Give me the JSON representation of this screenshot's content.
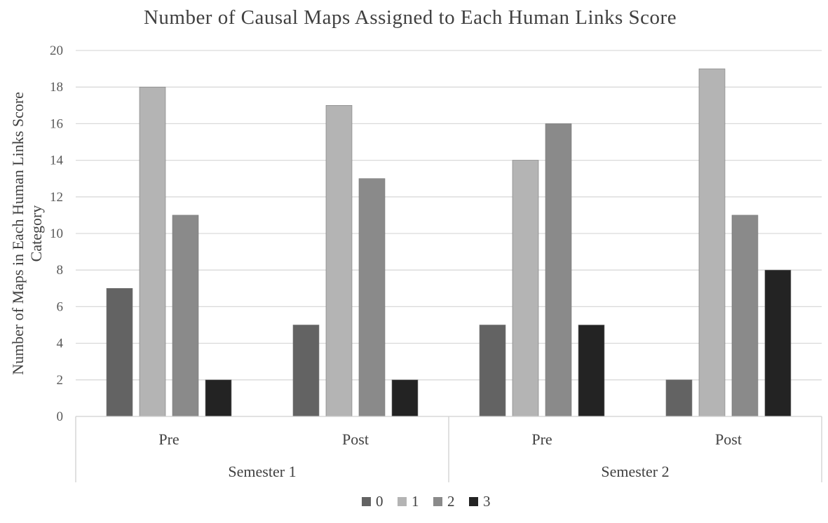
{
  "chart_data": {
    "type": "bar",
    "title": "Number of Causal Maps Assigned to Each Human Links Score",
    "xlabel": "",
    "ylabel_lines": [
      "Number of Maps in Each Human Links Score",
      "Category"
    ],
    "ylim": [
      0,
      20
    ],
    "yticks": [
      "0",
      "2",
      "4",
      "6",
      "8",
      "10",
      "12",
      "14",
      "16",
      "18",
      "20"
    ],
    "grid": true,
    "legend_position": "bottom",
    "groups": [
      {
        "label": "Semester 1",
        "categories": [
          "Pre",
          "Post"
        ]
      },
      {
        "label": "Semester 2",
        "categories": [
          "Pre",
          "Post"
        ]
      }
    ],
    "categories": [
      "Pre",
      "Post",
      "Pre",
      "Post"
    ],
    "series": [
      {
        "name": "0",
        "color": "#636363",
        "values": [
          7,
          5,
          5,
          2
        ]
      },
      {
        "name": "1",
        "color": "#b4b4b4",
        "values": [
          18,
          17,
          14,
          19
        ]
      },
      {
        "name": "2",
        "color": "#8a8a8a",
        "values": [
          11,
          13,
          16,
          11
        ]
      },
      {
        "name": "3",
        "color": "#232323",
        "values": [
          2,
          2,
          5,
          8
        ]
      }
    ]
  }
}
